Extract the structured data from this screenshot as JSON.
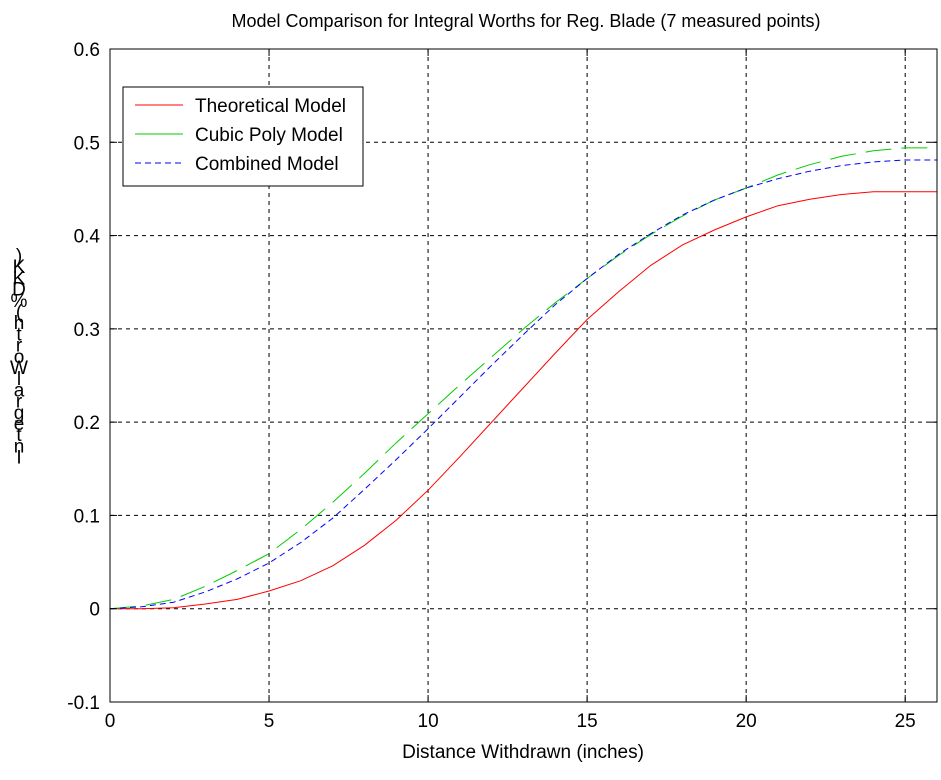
{
  "chart_data": {
    "type": "line",
    "title": "Model Comparison for Integral Worths for Reg. Blade (7 measured points)",
    "xlabel": "Distance Withdrawn (inches)",
    "ylabel": ")KKD%(htroW largetnI",
    "xlim": [
      0,
      26
    ],
    "ylim": [
      -0.1,
      0.6
    ],
    "xticks": [
      0,
      5,
      10,
      15,
      20,
      25
    ],
    "yticks": [
      -0.1,
      0,
      0.1,
      0.2,
      0.3,
      0.4,
      0.5,
      0.6
    ],
    "xtick_labels": [
      "0",
      "5",
      "10",
      "15",
      "20",
      "25"
    ],
    "ytick_labels": [
      "-0.1",
      "0",
      "0.1",
      "0.2",
      "0.3",
      "0.4",
      "0.5",
      "0.6"
    ],
    "grid": true,
    "legend_position": "top-left",
    "series": [
      {
        "name": "Theoretical Model",
        "color": "#ff0000",
        "dash": "solid",
        "x": [
          0,
          1,
          2,
          3,
          4,
          5,
          6,
          7,
          8,
          9,
          10,
          11,
          12,
          13,
          14,
          15,
          16,
          17,
          18,
          19,
          20,
          21,
          22,
          23,
          24,
          25,
          26
        ],
        "y": [
          0,
          0,
          0.001,
          0.005,
          0.01,
          0.019,
          0.03,
          0.046,
          0.068,
          0.095,
          0.127,
          0.163,
          0.2,
          0.237,
          0.274,
          0.31,
          0.34,
          0.368,
          0.39,
          0.406,
          0.42,
          0.432,
          0.439,
          0.444,
          0.447,
          0.447,
          0.447
        ]
      },
      {
        "name": "Cubic Poly Model",
        "color": "#00cc00",
        "dash": "long-dash",
        "x": [
          0,
          1,
          2,
          3,
          4,
          5,
          6,
          7,
          8,
          9,
          10,
          11,
          12,
          13,
          14,
          15,
          16,
          17,
          18,
          19,
          20,
          21,
          22,
          23,
          24,
          25,
          26
        ],
        "y": [
          0,
          0.003,
          0.01,
          0.024,
          0.041,
          0.059,
          0.085,
          0.114,
          0.145,
          0.178,
          0.209,
          0.24,
          0.27,
          0.3,
          0.328,
          0.354,
          0.379,
          0.401,
          0.421,
          0.438,
          0.451,
          0.465,
          0.476,
          0.485,
          0.491,
          0.494,
          0.494
        ]
      },
      {
        "name": "Combined Model",
        "color": "#0000ff",
        "dash": "short-dash",
        "x": [
          0,
          1,
          2,
          3,
          4,
          5,
          6,
          7,
          8,
          9,
          10,
          11,
          12,
          13,
          14,
          15,
          16,
          17,
          18,
          19,
          20,
          21,
          22,
          23,
          24,
          25,
          26
        ],
        "y": [
          0,
          0.002,
          0.007,
          0.018,
          0.032,
          0.049,
          0.071,
          0.097,
          0.128,
          0.16,
          0.193,
          0.227,
          0.261,
          0.294,
          0.326,
          0.354,
          0.38,
          0.402,
          0.422,
          0.438,
          0.451,
          0.461,
          0.469,
          0.475,
          0.479,
          0.481,
          0.481
        ]
      }
    ]
  }
}
